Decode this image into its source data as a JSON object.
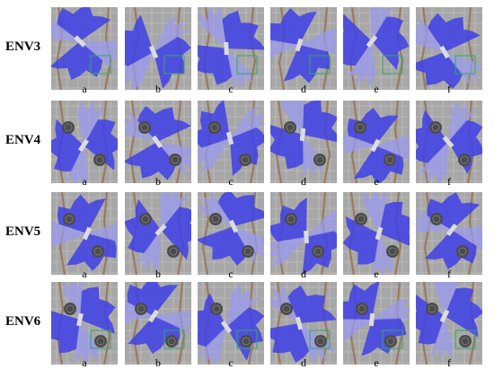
{
  "rows": [
    "ENV3",
    "ENV4",
    "ENV5",
    "ENV6"
  ],
  "columns": [
    "a",
    "b",
    "c",
    "d",
    "e",
    "f"
  ],
  "colors": {
    "background": "#a7a7a7",
    "grid": "#c9c9c9",
    "sensor_beam_dark": "#3f3fe6",
    "sensor_beam_light": "#9a9af0",
    "wall": "#9b7a5d",
    "robot": "#dcdcdc",
    "box_green": "#2fa86a",
    "obstacle": "#4b4b4b"
  }
}
